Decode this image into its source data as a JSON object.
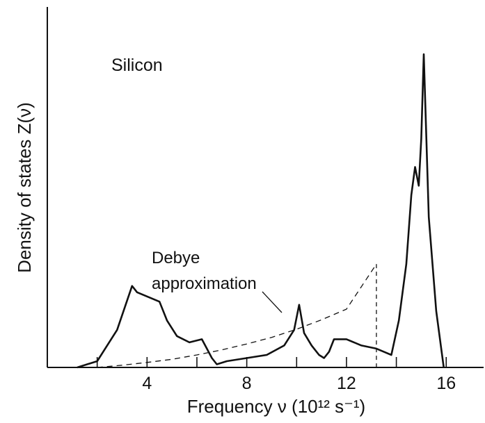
{
  "chart_data": {
    "type": "line",
    "title": "",
    "xlabel": "Frequency ν (10¹² s⁻¹)",
    "ylabel": "Density of states Z(ν)",
    "xlim": [
      0,
      17.5
    ],
    "ylim": [
      0,
      1
    ],
    "grid": false,
    "x_ticks": [
      2,
      4,
      6,
      8,
      10,
      12,
      14,
      16
    ],
    "x_tick_labels": [
      {
        "x": 4,
        "label": "4"
      },
      {
        "x": 8,
        "label": "8"
      },
      {
        "x": 12,
        "label": "12"
      },
      {
        "x": 16,
        "label": "16"
      }
    ],
    "annotations": {
      "material": "Silicon",
      "debye_line1": "Debye",
      "debye_line2": "approximation"
    },
    "series": [
      {
        "style": "solid",
        "x": [
          1.2,
          2.0,
          2.8,
          3.4,
          3.6,
          3.9,
          4.5,
          4.8,
          5.2,
          5.7,
          6.2,
          6.4,
          6.6,
          6.8,
          7.2,
          8.0,
          8.8,
          9.5,
          9.9,
          10.1,
          10.3,
          10.6,
          10.9,
          11.1,
          11.3,
          11.5,
          12.0,
          12.6,
          13.2,
          13.8,
          14.1,
          14.4,
          14.6,
          14.75,
          14.9,
          15.0,
          15.1,
          15.3,
          15.6,
          15.9
        ],
        "y": [
          0.0,
          0.02,
          0.12,
          0.26,
          0.24,
          0.23,
          0.21,
          0.15,
          0.1,
          0.08,
          0.09,
          0.06,
          0.03,
          0.01,
          0.02,
          0.03,
          0.04,
          0.07,
          0.12,
          0.2,
          0.11,
          0.07,
          0.04,
          0.03,
          0.05,
          0.09,
          0.09,
          0.07,
          0.06,
          0.04,
          0.15,
          0.33,
          0.55,
          0.64,
          0.58,
          0.73,
          1.0,
          0.48,
          0.18,
          0.0
        ]
      },
      {
        "style": "dashed",
        "x": [
          2,
          3,
          4,
          5,
          6,
          7,
          8,
          9,
          10,
          11,
          12,
          13.2
        ],
        "y": [
          0.0,
          0.007,
          0.016,
          0.026,
          0.04,
          0.056,
          0.075,
          0.096,
          0.122,
          0.152,
          0.186,
          0.33
        ]
      }
    ]
  }
}
